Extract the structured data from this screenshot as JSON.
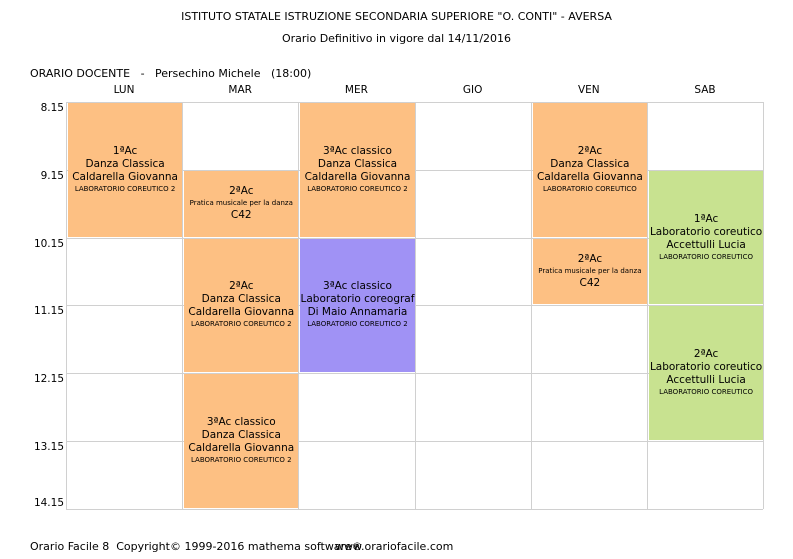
{
  "header": {
    "institute": "ISTITUTO STATALE ISTRUZIONE SECONDARIA SUPERIORE \"O. CONTI\" - AVERSA",
    "subtitle": "Orario Definitivo in vigore dal 14/11/2016",
    "teacher_line": "ORARIO DOCENTE   -   Persechino Michele   (18:00)"
  },
  "days": [
    "LUN",
    "MAR",
    "MER",
    "GIO",
    "VEN",
    "SAB"
  ],
  "hours": [
    "8.15",
    "9.15",
    "10.15",
    "11.15",
    "12.15",
    "13.15",
    "14.15"
  ],
  "events": [
    {
      "lines": [
        "1ªAc",
        "Danza Classica",
        "Caldarella Giovanna",
        "LABORATORIO COREUTICO 2"
      ]
    },
    {
      "lines": [
        "2ªAc",
        "Pratica musicale per la danza",
        "C42"
      ]
    },
    {
      "lines": [
        "2ªAc",
        "Danza Classica",
        "Caldarella Giovanna",
        "LABORATORIO COREUTICO 2"
      ]
    },
    {
      "lines": [
        "3ªAc classico",
        "Danza Classica",
        "Caldarella Giovanna",
        "LABORATORIO COREUTICO 2"
      ]
    },
    {
      "lines": [
        "3ªAc classico",
        "Danza Classica",
        "Caldarella Giovanna",
        "LABORATORIO COREUTICO 2"
      ]
    },
    {
      "lines": [
        "3ªAc classico",
        "Laboratorio coreograf",
        "Di Maio Annamaria",
        "LABORATORIO COREUTICO 2"
      ]
    },
    {
      "lines": [
        "2ªAc",
        "Danza Classica",
        "Caldarella Giovanna",
        "LABORATORIO COREUTICO"
      ]
    },
    {
      "lines": [
        "2ªAc",
        "Pratica musicale per la danza",
        "C42"
      ]
    },
    {
      "lines": [
        "1ªAc",
        "Laboratorio coreutico",
        "Accettulli Lucia",
        "LABORATORIO COREUTICO"
      ]
    },
    {
      "lines": [
        "2ªAc",
        "Laboratorio coreutico",
        "Accettulli Lucia",
        "LABORATORIO COREUTICO"
      ]
    }
  ],
  "footer": {
    "copyright": "Orario Facile 8  Copyright© 1999-2016 mathema software®",
    "website": "www.orariofacile.com"
  }
}
